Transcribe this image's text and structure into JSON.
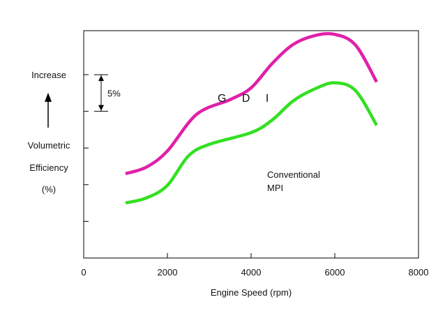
{
  "chart_data": {
    "type": "line",
    "title": "",
    "xlabel": "Engine Speed  (rpm)",
    "ylabel_lines": [
      "Volumetric",
      "Efficiency",
      "(%)"
    ],
    "increase_label": "Increase",
    "scale_annotation": "5%",
    "scale_annotation_span": 5,
    "xlim": [
      0,
      8000
    ],
    "x_ticks": [
      0,
      2000,
      4000,
      6000,
      8000
    ],
    "x_tick_labels": [
      "0",
      "2000",
      "4000",
      "6000",
      "8000"
    ],
    "y_unit": "relative volumetric efficiency (%)",
    "ylim": [
      -2,
      29
    ],
    "y_ticks": [
      3,
      8,
      13,
      18,
      23
    ],
    "grid": false,
    "legend": "inline labels",
    "series": [
      {
        "name": "G D I",
        "color": "#e020a8",
        "x": [
          1000,
          1500,
          2000,
          2700,
          3500,
          4000,
          4500,
          5000,
          5500,
          6000,
          6500,
          7000
        ],
        "y": [
          9.5,
          10.4,
          12.6,
          17.6,
          19.6,
          21.2,
          24.5,
          27.1,
          28.3,
          28.5,
          27.0,
          22.0
        ]
      },
      {
        "name": "Conventional MPI",
        "name_lines": [
          "Conventional",
          "MPI"
        ],
        "color": "#33e022",
        "x": [
          1000,
          1500,
          2000,
          2500,
          3000,
          4000,
          4500,
          5000,
          5500,
          6000,
          6500,
          7000
        ],
        "y": [
          5.5,
          6.2,
          7.9,
          11.9,
          13.5,
          15.1,
          16.8,
          19.4,
          21.0,
          21.9,
          20.8,
          16.1
        ]
      }
    ]
  }
}
